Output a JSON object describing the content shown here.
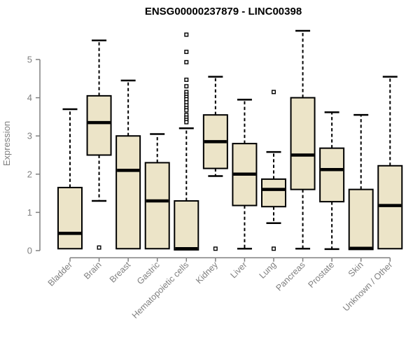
{
  "chart_data": {
    "type": "boxplot",
    "title": "ENSG00000237879 - LINC00398",
    "xlabel": "",
    "ylabel": "Expression",
    "yticks": [
      0,
      1,
      2,
      3,
      4,
      5
    ],
    "ylim": [
      0,
      5.85
    ],
    "grid": false,
    "legend": "none",
    "categories": [
      "Bladder",
      "Brain",
      "Breast",
      "Gastric",
      "Hematopoietic cells",
      "Kidney",
      "Liver",
      "Lung",
      "Pancreas",
      "Prostate",
      "Skin",
      "Unknown / Other"
    ],
    "series": [
      {
        "category": "Bladder",
        "q1": 0.05,
        "median": 0.45,
        "q3": 1.65,
        "whisker_low": null,
        "whisker_high": 3.7,
        "outliers": []
      },
      {
        "category": "Brain",
        "q1": 2.5,
        "median": 3.35,
        "q3": 4.05,
        "whisker_low": 1.3,
        "whisker_high": 5.5,
        "outliers": [
          0.08
        ]
      },
      {
        "category": "Breast",
        "q1": 0.05,
        "median": 2.1,
        "q3": 3.0,
        "whisker_low": null,
        "whisker_high": 4.45,
        "outliers": []
      },
      {
        "category": "Gastric",
        "q1": 0.05,
        "median": 1.3,
        "q3": 2.3,
        "whisker_low": null,
        "whisker_high": 3.05,
        "outliers": []
      },
      {
        "category": "Hematopoietic cells",
        "q1": 0.02,
        "median": 0.05,
        "q3": 1.3,
        "whisker_low": null,
        "whisker_high": 3.2,
        "outliers": [
          5.65,
          5.2,
          4.93,
          4.47,
          4.3,
          4.15,
          4.08,
          4.02,
          3.96,
          3.88,
          3.8,
          3.73,
          3.67,
          3.55,
          3.48,
          3.42,
          3.36
        ]
      },
      {
        "category": "Kidney",
        "q1": 2.15,
        "median": 2.85,
        "q3": 3.55,
        "whisker_low": 1.95,
        "whisker_high": 4.55,
        "outliers": [
          0.05
        ]
      },
      {
        "category": "Liver",
        "q1": 1.18,
        "median": 2.0,
        "q3": 2.8,
        "whisker_low": 0.05,
        "whisker_high": 3.95,
        "outliers": []
      },
      {
        "category": "Lung",
        "q1": 1.15,
        "median": 1.6,
        "q3": 1.87,
        "whisker_low": 0.72,
        "whisker_high": 2.58,
        "outliers": [
          4.15,
          0.05
        ]
      },
      {
        "category": "Pancreas",
        "q1": 1.6,
        "median": 2.5,
        "q3": 4.0,
        "whisker_low": 0.05,
        "whisker_high": 5.75,
        "outliers": []
      },
      {
        "category": "Prostate",
        "q1": 1.28,
        "median": 2.12,
        "q3": 2.68,
        "whisker_low": 0.04,
        "whisker_high": 3.62,
        "outliers": []
      },
      {
        "category": "Skin",
        "q1": 0.03,
        "median": 0.06,
        "q3": 1.6,
        "whisker_low": null,
        "whisker_high": 3.55,
        "outliers": []
      },
      {
        "category": "Unknown / Other",
        "q1": 0.05,
        "median": 1.18,
        "q3": 2.22,
        "whisker_low": null,
        "whisker_high": 4.55,
        "outliers": []
      }
    ],
    "colors": {
      "box_fill": "#ece4c8",
      "box_border": "#000000",
      "median": "#000000",
      "whisker": "#000000",
      "axis": "#808080",
      "tick_label": "#808080",
      "title": "#000000"
    }
  }
}
